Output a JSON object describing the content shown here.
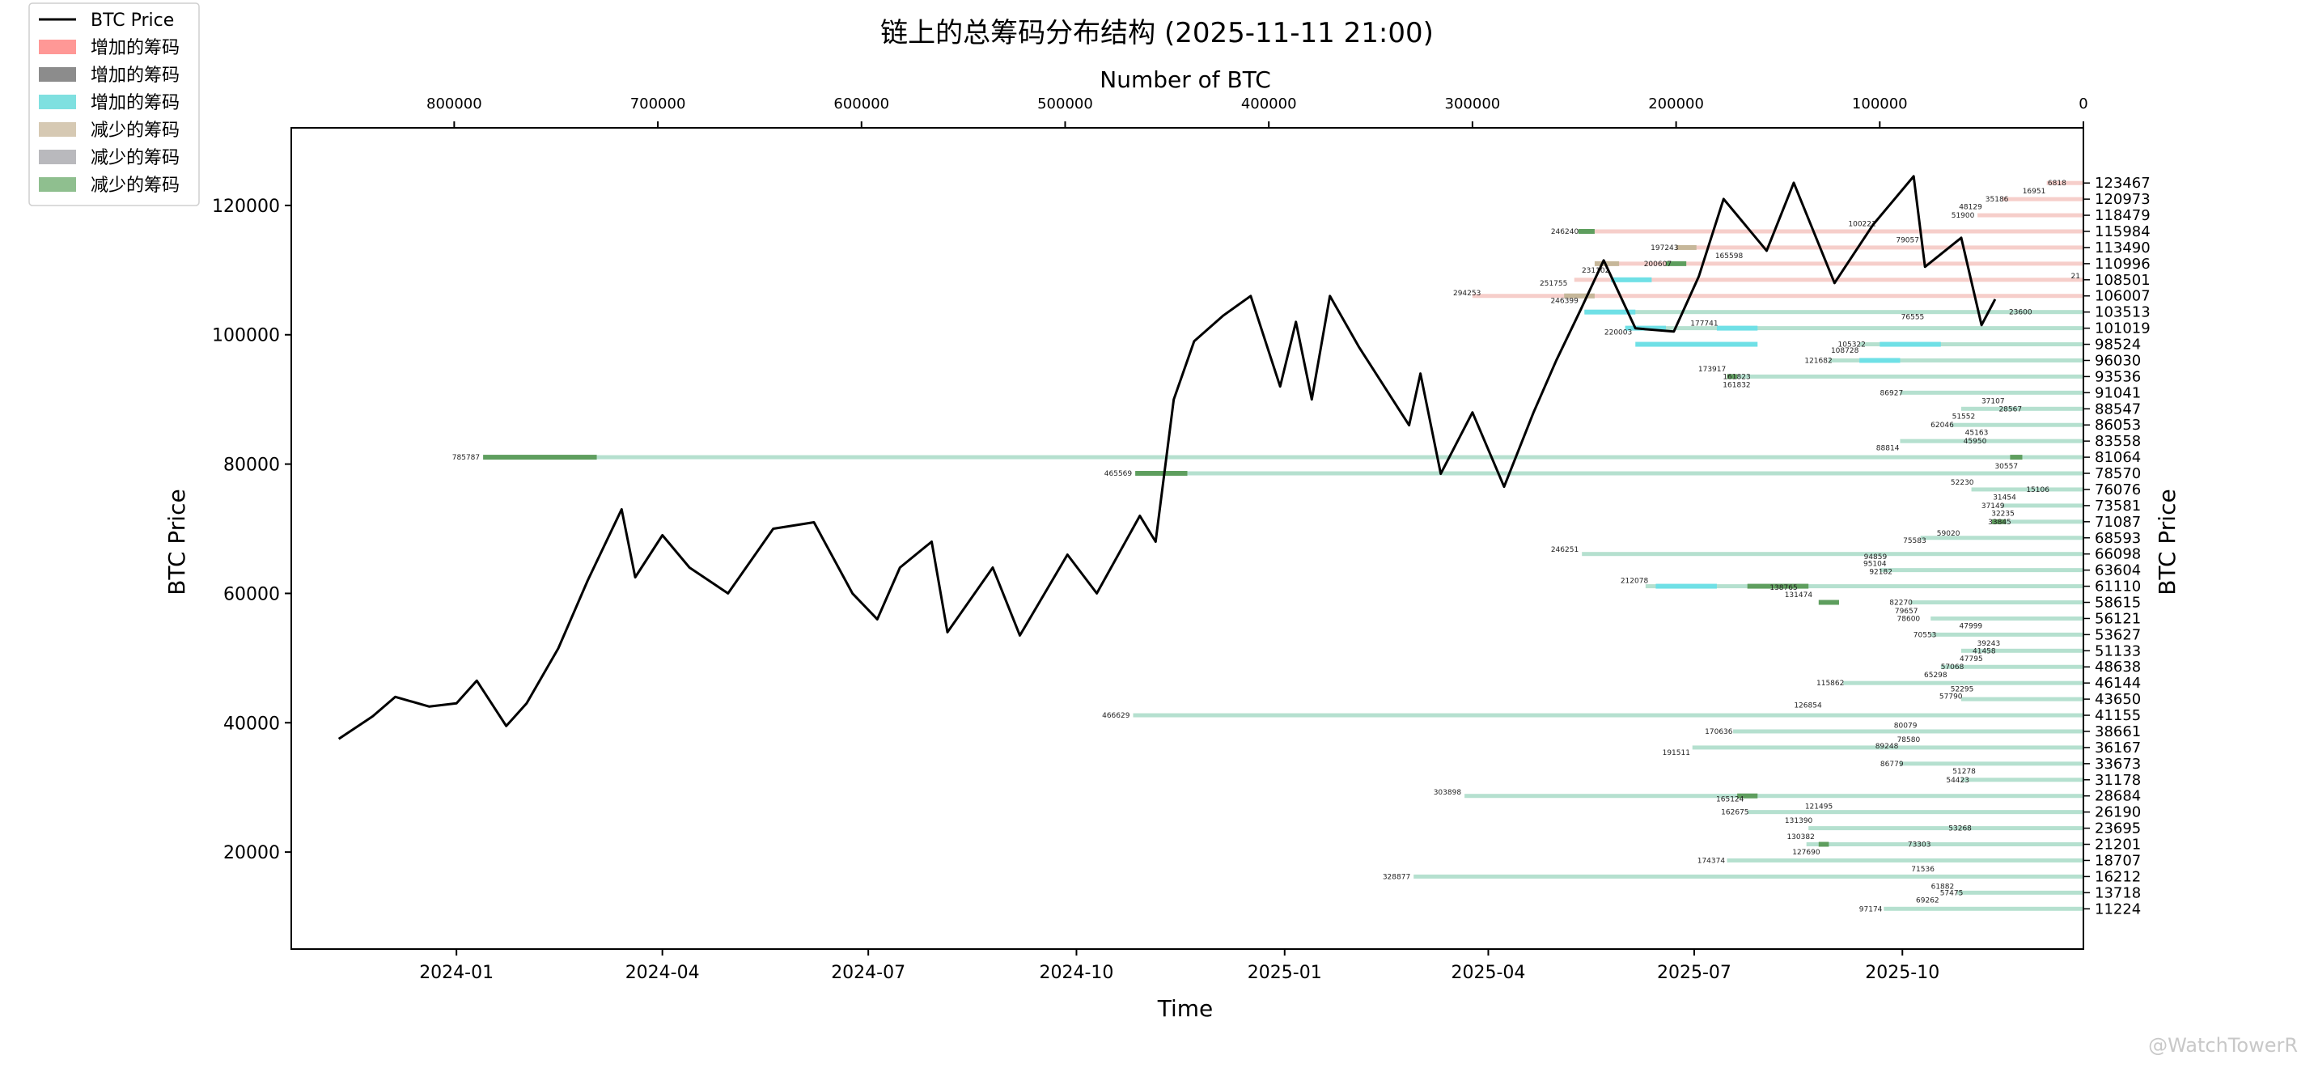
{
  "chart_data": {
    "type": "line",
    "title": "链上的总筹码分布结构 (2025-11-11 21:00)",
    "xlabel": "Time",
    "ylabel": "BTC Price",
    "top_xlabel": "Number of BTC",
    "right_ylabel": "BTC Price",
    "xlim": [
      "2023-10-20",
      "2025-12-20"
    ],
    "ylim": [
      5000,
      132000
    ],
    "top_xlim": [
      880000,
      0
    ],
    "x_ticks": [
      "2024-01",
      "2024-04",
      "2024-07",
      "2024-10",
      "2025-01",
      "2025-04",
      "2025-07",
      "2025-10"
    ],
    "x_tick_dates": [
      "2024-01-01",
      "2024-04-01",
      "2024-07-01",
      "2024-10-01",
      "2025-01-01",
      "2025-04-01",
      "2025-07-01",
      "2025-10-01"
    ],
    "y_ticks": [
      20000,
      40000,
      60000,
      80000,
      100000,
      120000
    ],
    "top_x_ticks": [
      800000,
      700000,
      600000,
      500000,
      400000,
      300000,
      200000,
      100000,
      0
    ],
    "right_y_ticks": [
      123467,
      120973,
      118479,
      115984,
      113490,
      110996,
      108501,
      106007,
      103513,
      101019,
      98524,
      96030,
      93536,
      91041,
      88547,
      86053,
      83558,
      81064,
      78570,
      76076,
      73581,
      71087,
      68593,
      66098,
      63604,
      61110,
      58615,
      56121,
      53627,
      51133,
      48638,
      46144,
      43650,
      41155,
      38661,
      36167,
      33673,
      31178,
      28684,
      26190,
      23695,
      21201,
      18707,
      16212,
      13718,
      11224
    ],
    "legend": {
      "position": "top-left",
      "entries": [
        {
          "label": "BTC Price",
          "kind": "line",
          "color": "#000000"
        },
        {
          "label": "增加的筹码",
          "kind": "patch",
          "color": "#ff9896"
        },
        {
          "label": "增加的筹码",
          "kind": "patch",
          "color": "#8c8c8c"
        },
        {
          "label": "增加的筹码",
          "kind": "patch",
          "color": "#7fe0e0"
        },
        {
          "label": "减少的筹码",
          "kind": "patch",
          "color": "#d6c9b3"
        },
        {
          "label": "减少的筹码",
          "kind": "patch",
          "color": "#b9b9bd"
        },
        {
          "label": "减少的筹码",
          "kind": "patch",
          "color": "#8fbf8f"
        }
      ]
    },
    "colors": {
      "price_line": "#000000",
      "bar_above_price": "#f5c6c1",
      "bar_below_price": "#a8dac7",
      "added_cyan": "#6fe0e6",
      "reduced_tan": "#c6b79a",
      "reduced_green": "#5e9e5e"
    },
    "series": [
      {
        "name": "BTC Price",
        "points": [
          [
            "2023-11-10",
            37500
          ],
          [
            "2023-11-25",
            41000
          ],
          [
            "2023-12-05",
            44000
          ],
          [
            "2023-12-20",
            42500
          ],
          [
            "2024-01-01",
            43000
          ],
          [
            "2024-01-10",
            46500
          ],
          [
            "2024-01-23",
            39500
          ],
          [
            "2024-02-01",
            43000
          ],
          [
            "2024-02-15",
            51500
          ],
          [
            "2024-02-28",
            62000
          ],
          [
            "2024-03-14",
            73000
          ],
          [
            "2024-03-20",
            62500
          ],
          [
            "2024-04-01",
            69000
          ],
          [
            "2024-04-13",
            64000
          ],
          [
            "2024-04-30",
            60000
          ],
          [
            "2024-05-20",
            70000
          ],
          [
            "2024-06-07",
            71000
          ],
          [
            "2024-06-24",
            60000
          ],
          [
            "2024-07-05",
            56000
          ],
          [
            "2024-07-15",
            64000
          ],
          [
            "2024-07-29",
            68000
          ],
          [
            "2024-08-05",
            54000
          ],
          [
            "2024-08-25",
            64000
          ],
          [
            "2024-09-06",
            53500
          ],
          [
            "2024-09-27",
            66000
          ],
          [
            "2024-10-10",
            60000
          ],
          [
            "2024-10-29",
            72000
          ],
          [
            "2024-11-05",
            68000
          ],
          [
            "2024-11-13",
            90000
          ],
          [
            "2024-11-22",
            99000
          ],
          [
            "2024-12-05",
            103000
          ],
          [
            "2024-12-17",
            106000
          ],
          [
            "2024-12-30",
            92000
          ],
          [
            "2025-01-06",
            102000
          ],
          [
            "2025-01-13",
            90000
          ],
          [
            "2025-01-21",
            106000
          ],
          [
            "2025-02-03",
            98000
          ],
          [
            "2025-02-25",
            86000
          ],
          [
            "2025-03-02",
            94000
          ],
          [
            "2025-03-11",
            78500
          ],
          [
            "2025-03-25",
            88000
          ],
          [
            "2025-04-08",
            76500
          ],
          [
            "2025-04-21",
            88000
          ],
          [
            "2025-05-01",
            96000
          ],
          [
            "2025-05-12",
            104000
          ],
          [
            "2025-05-22",
            111500
          ],
          [
            "2025-06-05",
            101000
          ],
          [
            "2025-06-22",
            100500
          ],
          [
            "2025-07-03",
            109000
          ],
          [
            "2025-07-14",
            121000
          ],
          [
            "2025-08-02",
            113000
          ],
          [
            "2025-08-14",
            123500
          ],
          [
            "2025-09-01",
            108000
          ],
          [
            "2025-09-18",
            117000
          ],
          [
            "2025-10-06",
            124500
          ],
          [
            "2025-10-11",
            110500
          ],
          [
            "2025-10-27",
            115000
          ],
          [
            "2025-11-05",
            101500
          ],
          [
            "2025-11-11",
            105500
          ]
        ]
      }
    ],
    "distribution_bars": [
      {
        "price": 123467,
        "start": 0,
        "extent": 18000
      },
      {
        "price": 120973,
        "start": 0,
        "extent": 40000
      },
      {
        "price": 118479,
        "start": 0,
        "extent": 52000
      },
      {
        "price": 115984,
        "start": 0,
        "extent": 245000
      },
      {
        "price": 113490,
        "start": 0,
        "extent": 200000
      },
      {
        "price": 110996,
        "start": 0,
        "extent": 232000
      },
      {
        "price": 108501,
        "start": 0,
        "extent": 250000
      },
      {
        "price": 106007,
        "start": 0,
        "extent": 300000
      },
      {
        "price": 103513,
        "start": 0,
        "extent": 245000
      },
      {
        "price": 101019,
        "start": 0,
        "extent": 225000
      },
      {
        "price": 98524,
        "start": 0,
        "extent": 110000
      },
      {
        "price": 96030,
        "start": 0,
        "extent": 125000
      },
      {
        "price": 93536,
        "start": 0,
        "extent": 175000
      },
      {
        "price": 91041,
        "start": 0,
        "extent": 90000
      },
      {
        "price": 88547,
        "start": 0,
        "extent": 60000
      },
      {
        "price": 86053,
        "start": 0,
        "extent": 65000
      },
      {
        "price": 83558,
        "start": 0,
        "extent": 90000
      },
      {
        "price": 81064,
        "start": 0,
        "extent": 785787
      },
      {
        "price": 78570,
        "start": 0,
        "extent": 465569
      },
      {
        "price": 76076,
        "start": 0,
        "extent": 55000
      },
      {
        "price": 73581,
        "start": 0,
        "extent": 40000
      },
      {
        "price": 71087,
        "start": 0,
        "extent": 40000
      },
      {
        "price": 68593,
        "start": 0,
        "extent": 80000
      },
      {
        "price": 66098,
        "start": 0,
        "extent": 246251
      },
      {
        "price": 63604,
        "start": 0,
        "extent": 100000
      },
      {
        "price": 61110,
        "start": 0,
        "extent": 215000
      },
      {
        "price": 58615,
        "start": 0,
        "extent": 85000
      },
      {
        "price": 56121,
        "start": 0,
        "extent": 75000
      },
      {
        "price": 53627,
        "start": 0,
        "extent": 75000
      },
      {
        "price": 51133,
        "start": 0,
        "extent": 60000
      },
      {
        "price": 48638,
        "start": 0,
        "extent": 70000
      },
      {
        "price": 46144,
        "start": 0,
        "extent": 118000
      },
      {
        "price": 43650,
        "start": 0,
        "extent": 60000
      },
      {
        "price": 41155,
        "start": 0,
        "extent": 466629
      },
      {
        "price": 38661,
        "start": 0,
        "extent": 172000
      },
      {
        "price": 36167,
        "start": 0,
        "extent": 192000
      },
      {
        "price": 33673,
        "start": 0,
        "extent": 90000
      },
      {
        "price": 31178,
        "start": 0,
        "extent": 60000
      },
      {
        "price": 28684,
        "start": 0,
        "extent": 303898
      },
      {
        "price": 26190,
        "start": 0,
        "extent": 165000
      },
      {
        "price": 23695,
        "start": 0,
        "extent": 135000
      },
      {
        "price": 21201,
        "start": 0,
        "extent": 136000
      },
      {
        "price": 18707,
        "start": 0,
        "extent": 175000
      },
      {
        "price": 16212,
        "start": 0,
        "extent": 328877
      },
      {
        "price": 13718,
        "start": 0,
        "extent": 62000
      },
      {
        "price": 11224,
        "start": 0,
        "extent": 98000
      }
    ],
    "change_segments": [
      {
        "price": 115984,
        "start": 240000,
        "end": 248000,
        "kind": "reduced_green"
      },
      {
        "price": 113490,
        "start": 190000,
        "end": 200000,
        "kind": "reduced_tan"
      },
      {
        "price": 110996,
        "start": 228000,
        "end": 240000,
        "kind": "reduced_tan"
      },
      {
        "price": 110996,
        "start": 195000,
        "end": 205000,
        "kind": "reduced_green"
      },
      {
        "price": 108501,
        "start": 212000,
        "end": 232000,
        "kind": "added_cyan"
      },
      {
        "price": 106007,
        "start": 240000,
        "end": 255000,
        "kind": "reduced_tan"
      },
      {
        "price": 103513,
        "start": 220000,
        "end": 245000,
        "kind": "added_cyan"
      },
      {
        "price": 101019,
        "start": 160000,
        "end": 180000,
        "kind": "added_cyan"
      },
      {
        "price": 101019,
        "start": 205000,
        "end": 225000,
        "kind": "added_cyan"
      },
      {
        "price": 98524,
        "start": 70000,
        "end": 100000,
        "kind": "added_cyan"
      },
      {
        "price": 98524,
        "start": 160000,
        "end": 220000,
        "kind": "added_cyan"
      },
      {
        "price": 96030,
        "start": 90000,
        "end": 110000,
        "kind": "added_cyan"
      },
      {
        "price": 93536,
        "start": 170000,
        "end": 175000,
        "kind": "reduced_green"
      },
      {
        "price": 81064,
        "start": 730000,
        "end": 785787,
        "kind": "reduced_green"
      },
      {
        "price": 81064,
        "start": 30000,
        "end": 36000,
        "kind": "reduced_green"
      },
      {
        "price": 78570,
        "start": 440000,
        "end": 465569,
        "kind": "reduced_green"
      },
      {
        "price": 71087,
        "start": 38000,
        "end": 45000,
        "kind": "reduced_green"
      },
      {
        "price": 61110,
        "start": 180000,
        "end": 210000,
        "kind": "added_cyan"
      },
      {
        "price": 61110,
        "start": 135000,
        "end": 165000,
        "kind": "reduced_green"
      },
      {
        "price": 58615,
        "start": 120000,
        "end": 130000,
        "kind": "reduced_green"
      },
      {
        "price": 28684,
        "start": 160000,
        "end": 170000,
        "kind": "reduced_green"
      },
      {
        "price": 21201,
        "start": 125000,
        "end": 130000,
        "kind": "reduced_green"
      }
    ],
    "segment_labels": [
      {
        "price": 123467,
        "text": "6818"
      },
      {
        "price": 122220,
        "text": "16951"
      },
      {
        "price": 121000,
        "text": "35186"
      },
      {
        "price": 119800,
        "text": "48129"
      },
      {
        "price": 118479,
        "text": "51900"
      },
      {
        "price": 117200,
        "text": "100221"
      },
      {
        "price": 115984,
        "text": "246240"
      },
      {
        "price": 114700,
        "text": "79057"
      },
      {
        "price": 113490,
        "text": "197243"
      },
      {
        "price": 112200,
        "text": "165598"
      },
      {
        "price": 110996,
        "text": "200607"
      },
      {
        "price": 110000,
        "text": "231102"
      },
      {
        "price": 109100,
        "text": "21"
      },
      {
        "price": 108000,
        "text": "251755"
      },
      {
        "price": 106500,
        "text": "294253"
      },
      {
        "price": 105300,
        "text": "246399"
      },
      {
        "price": 103513,
        "text": "23600"
      },
      {
        "price": 102800,
        "text": "76555"
      },
      {
        "price": 101800,
        "text": "177741"
      },
      {
        "price": 100400,
        "text": "220003"
      },
      {
        "price": 98524,
        "text": "105322"
      },
      {
        "price": 97600,
        "text": "108728"
      },
      {
        "price": 96030,
        "text": "121682"
      },
      {
        "price": 94700,
        "text": "173917"
      },
      {
        "price": 93536,
        "text": "161823"
      },
      {
        "price": 92300,
        "text": "161832"
      },
      {
        "price": 91041,
        "text": "86927"
      },
      {
        "price": 89800,
        "text": "37107"
      },
      {
        "price": 88547,
        "text": "28567"
      },
      {
        "price": 87400,
        "text": "51552"
      },
      {
        "price": 86053,
        "text": "62046"
      },
      {
        "price": 84900,
        "text": "45163"
      },
      {
        "price": 83558,
        "text": "45950"
      },
      {
        "price": 82500,
        "text": "88814"
      },
      {
        "price": 81064,
        "text": "785787"
      },
      {
        "price": 79700,
        "text": "30557"
      },
      {
        "price": 78570,
        "text": "465569"
      },
      {
        "price": 77200,
        "text": "52230"
      },
      {
        "price": 76076,
        "text": "15106"
      },
      {
        "price": 74900,
        "text": "31454"
      },
      {
        "price": 73581,
        "text": "37149"
      },
      {
        "price": 72400,
        "text": "32235"
      },
      {
        "price": 71087,
        "text": "33845"
      },
      {
        "price": 69300,
        "text": "59020"
      },
      {
        "price": 68200,
        "text": "75583"
      },
      {
        "price": 66800,
        "text": "246251"
      },
      {
        "price": 65700,
        "text": "94859"
      },
      {
        "price": 64600,
        "text": "95104"
      },
      {
        "price": 63400,
        "text": "92182"
      },
      {
        "price": 62000,
        "text": "212078"
      },
      {
        "price": 60900,
        "text": "138765"
      },
      {
        "price": 59800,
        "text": "131474"
      },
      {
        "price": 58615,
        "text": "82270"
      },
      {
        "price": 57300,
        "text": "79657"
      },
      {
        "price": 56121,
        "text": "78600"
      },
      {
        "price": 55000,
        "text": "47999"
      },
      {
        "price": 53627,
        "text": "70553"
      },
      {
        "price": 52300,
        "text": "39243"
      },
      {
        "price": 51133,
        "text": "41458"
      },
      {
        "price": 49900,
        "text": "47795"
      },
      {
        "price": 48638,
        "text": "57068"
      },
      {
        "price": 47400,
        "text": "65298"
      },
      {
        "price": 46144,
        "text": "115862"
      },
      {
        "price": 45200,
        "text": "52295"
      },
      {
        "price": 44100,
        "text": "57790"
      },
      {
        "price": 42700,
        "text": "126854"
      },
      {
        "price": 41155,
        "text": "466629"
      },
      {
        "price": 39600,
        "text": "80079"
      },
      {
        "price": 38661,
        "text": "170636"
      },
      {
        "price": 37400,
        "text": "78580"
      },
      {
        "price": 36400,
        "text": "89248"
      },
      {
        "price": 35400,
        "text": "191511"
      },
      {
        "price": 33673,
        "text": "86779"
      },
      {
        "price": 32500,
        "text": "51278"
      },
      {
        "price": 31178,
        "text": "54423"
      },
      {
        "price": 29300,
        "text": "303898"
      },
      {
        "price": 28200,
        "text": "165124"
      },
      {
        "price": 27100,
        "text": "121495"
      },
      {
        "price": 26190,
        "text": "162675"
      },
      {
        "price": 24900,
        "text": "131390"
      },
      {
        "price": 23695,
        "text": "53268"
      },
      {
        "price": 22400,
        "text": "130382"
      },
      {
        "price": 21201,
        "text": "73303"
      },
      {
        "price": 20000,
        "text": "127690"
      },
      {
        "price": 18707,
        "text": "174374"
      },
      {
        "price": 17400,
        "text": "71536"
      },
      {
        "price": 16212,
        "text": "328877"
      },
      {
        "price": 14700,
        "text": "61882"
      },
      {
        "price": 13718,
        "text": "57475"
      },
      {
        "price": 12600,
        "text": "69262"
      },
      {
        "price": 11224,
        "text": "97174"
      }
    ]
  },
  "watermark": "@WatchTowerR"
}
